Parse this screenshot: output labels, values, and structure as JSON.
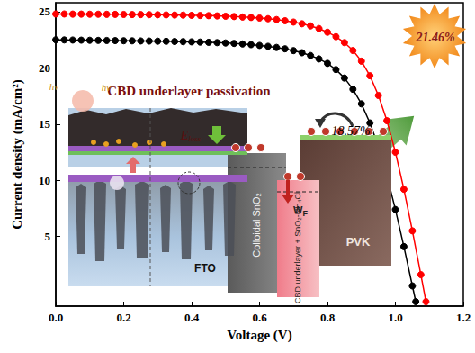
{
  "chart_data": {
    "type": "line",
    "x_label": "Voltage (V)",
    "y_label": "Current density (mA/cm²)",
    "xlim": [
      0,
      1.2
    ],
    "xticks": [
      {
        "value": 0,
        "label": "0.0"
      },
      0.2,
      0.4,
      0.6,
      0.8,
      {
        "value": 1,
        "label": "1.0"
      },
      1.2
    ],
    "ylim": [
      -1.2,
      25.8
    ],
    "yticks": [
      5,
      10,
      15,
      20,
      25
    ],
    "grid": false,
    "marker": "circle",
    "line_style": "solid",
    "series": [
      {
        "color": "#000000",
        "x": [
          0,
          0.025,
          0.05,
          0.075,
          0.1,
          0.125,
          0.15,
          0.175,
          0.2,
          0.225,
          0.25,
          0.275,
          0.3,
          0.325,
          0.35,
          0.375,
          0.4,
          0.425,
          0.45,
          0.475,
          0.5,
          0.525,
          0.55,
          0.575,
          0.6,
          0.625,
          0.65,
          0.675,
          0.7,
          0.725,
          0.75,
          0.775,
          0.8,
          0.825,
          0.85,
          0.875,
          0.9,
          0.925,
          0.95,
          0.975,
          1.0,
          1.025,
          1.05,
          1.06
        ],
        "values": [
          22.5,
          22.49,
          22.48,
          22.47,
          22.46,
          22.45,
          22.44,
          22.43,
          22.42,
          22.41,
          22.4,
          22.39,
          22.38,
          22.37,
          22.35,
          22.34,
          22.32,
          22.3,
          22.28,
          22.25,
          22.22,
          22.18,
          22.13,
          22.07,
          22.0,
          21.92,
          21.82,
          21.7,
          21.54,
          21.35,
          21.1,
          20.8,
          20.4,
          19.85,
          19.1,
          18.1,
          16.8,
          15.1,
          13.0,
          10.4,
          7.4,
          4.1,
          0.6,
          -0.8
        ]
      },
      {
        "color": "#ff0000",
        "x": [
          0,
          0.025,
          0.05,
          0.075,
          0.1,
          0.125,
          0.15,
          0.175,
          0.2,
          0.225,
          0.25,
          0.275,
          0.3,
          0.325,
          0.35,
          0.375,
          0.4,
          0.425,
          0.45,
          0.475,
          0.5,
          0.525,
          0.55,
          0.575,
          0.6,
          0.625,
          0.65,
          0.675,
          0.7,
          0.725,
          0.75,
          0.775,
          0.8,
          0.825,
          0.85,
          0.875,
          0.9,
          0.925,
          0.95,
          0.975,
          1.0,
          1.025,
          1.05,
          1.075,
          1.09
        ],
        "values": [
          24.8,
          24.8,
          24.79,
          24.79,
          24.78,
          24.78,
          24.77,
          24.77,
          24.76,
          24.75,
          24.75,
          24.74,
          24.73,
          24.72,
          24.71,
          24.7,
          24.68,
          24.67,
          24.65,
          24.63,
          24.6,
          24.57,
          24.53,
          24.49,
          24.44,
          24.38,
          24.3,
          24.2,
          24.08,
          23.93,
          23.74,
          23.5,
          23.18,
          22.78,
          22.25,
          21.55,
          20.6,
          19.3,
          17.55,
          15.3,
          12.5,
          9.2,
          5.5,
          1.6,
          -0.8
        ]
      }
    ],
    "annotations": [
      "CBD underlayer passivation",
      "21.46%",
      "18.57%",
      "hν",
      "hν",
      {
        "text": "E",
        "subscript": "loss"
      },
      "FTO",
      "Colloidal SnO₂",
      {
        "text": "W",
        "subscript": "F"
      },
      "CBD underlayer + SnO₂-NH₄Cl",
      "PVK"
    ]
  }
}
